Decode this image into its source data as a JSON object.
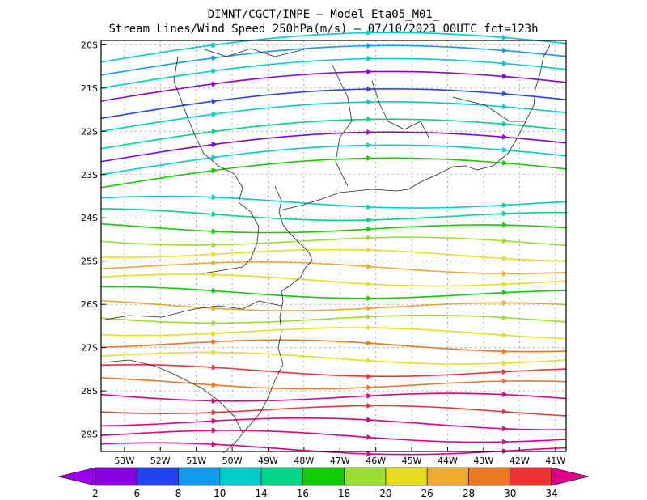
{
  "title": {
    "line1": "DIMNT/CGCT/INPE –  Model Eta05_M01_",
    "line2": "Stream Lines/Wind Speed 250hPa(m/s) –  07/10/2023 00UTC fct=123h"
  },
  "map": {
    "lon_range": [
      -53.65,
      -40.7
    ],
    "lat_range": [
      -29.4,
      -19.9
    ],
    "lat_ticks": [
      "20S",
      "21S",
      "22S",
      "23S",
      "24S",
      "25S",
      "26S",
      "27S",
      "28S",
      "29S"
    ],
    "lon_ticks": [
      "53W",
      "52W",
      "51W",
      "50W",
      "49W",
      "48W",
      "47W",
      "46W",
      "45W",
      "44W",
      "43W",
      "42W",
      "41W"
    ],
    "grid": true
  },
  "colorbar": {
    "labels": [
      "2",
      "6",
      "8",
      "10",
      "14",
      "16",
      "18",
      "20",
      "26",
      "28",
      "30",
      "34"
    ],
    "colors": [
      "#9900ee",
      "#8800dd",
      "#2244ee",
      "#1199ee",
      "#00cccc",
      "#00d488",
      "#11cc00",
      "#99dd33",
      "#e6dd22",
      "#eeaa33",
      "#ee7722",
      "#ee3333",
      "#dd0088"
    ]
  },
  "streamlines": [
    {
      "lat": -20.4,
      "c": "#00cccc"
    },
    {
      "lat": -20.7,
      "c": "#1199ee"
    },
    {
      "lat": -21.0,
      "c": "#00cccc"
    },
    {
      "lat": -21.3,
      "c": "#8800dd"
    },
    {
      "lat": -21.7,
      "c": "#2244ee"
    },
    {
      "lat": -22.0,
      "c": "#00cccc"
    },
    {
      "lat": -22.4,
      "c": "#00d488"
    },
    {
      "lat": -22.7,
      "c": "#8800dd"
    },
    {
      "lat": -23.0,
      "c": "#00cccc"
    },
    {
      "lat": -23.3,
      "c": "#11cc00"
    },
    {
      "lat": -23.6,
      "c": "#00cccc"
    },
    {
      "lat": -23.9,
      "c": "#00d488"
    },
    {
      "lat": -24.2,
      "c": "#11cc00"
    },
    {
      "lat": -24.5,
      "c": "#99dd33"
    },
    {
      "lat": -24.8,
      "c": "#e6dd22"
    },
    {
      "lat": -25.1,
      "c": "#eeaa33"
    },
    {
      "lat": -25.4,
      "c": "#e6dd22"
    },
    {
      "lat": -25.7,
      "c": "#11cc00"
    },
    {
      "lat": -26.0,
      "c": "#eeaa33"
    },
    {
      "lat": -26.3,
      "c": "#99dd33"
    },
    {
      "lat": -26.6,
      "c": "#e6dd22"
    },
    {
      "lat": -26.9,
      "c": "#ee7722"
    },
    {
      "lat": -27.2,
      "c": "#e6dd22"
    },
    {
      "lat": -27.5,
      "c": "#ee3333"
    },
    {
      "lat": -27.8,
      "c": "#ee7722"
    },
    {
      "lat": -28.1,
      "c": "#dd0088"
    },
    {
      "lat": -28.4,
      "c": "#ee3333"
    },
    {
      "lat": -28.7,
      "c": "#dd0088"
    },
    {
      "lat": -29.0,
      "c": "#dd0088"
    },
    {
      "lat": -29.3,
      "c": "#dd0088"
    }
  ]
}
